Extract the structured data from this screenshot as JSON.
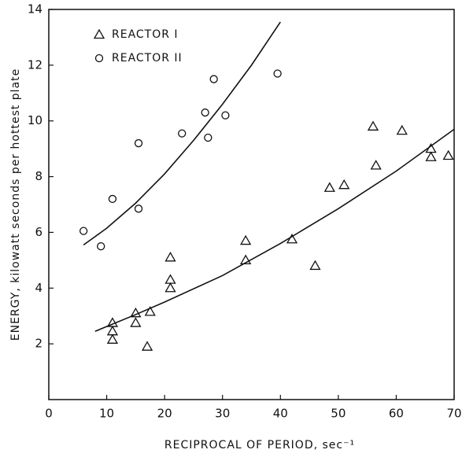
{
  "chart_data": {
    "type": "scatter",
    "x_label": "RECIPROCAL OF PERIOD, sec⁻¹",
    "y_label": "ENERGY, kilowatt seconds per hottest plate",
    "xlim": [
      0,
      70
    ],
    "ylim": [
      0,
      14
    ],
    "xticks": [
      0,
      10,
      20,
      30,
      40,
      50,
      60,
      70
    ],
    "yticks": [
      2,
      4,
      6,
      8,
      10,
      12,
      14
    ],
    "legend": "upper left",
    "color": "#111111",
    "series": [
      {
        "name": "REACTOR I",
        "marker": "triangle",
        "x": [
          11,
          11,
          11,
          15,
          15,
          17.5,
          17,
          21,
          21,
          21,
          34,
          34,
          42,
          46,
          48.5,
          51,
          56,
          56.5,
          61,
          66,
          66,
          69
        ],
        "values": [
          2.75,
          2.45,
          2.15,
          3.1,
          2.75,
          3.15,
          1.9,
          4.3,
          4.0,
          5.1,
          5.7,
          5.0,
          5.75,
          4.8,
          7.6,
          7.7,
          9.8,
          8.4,
          9.65,
          9.0,
          8.7,
          8.75
        ]
      },
      {
        "name": "REACTOR II",
        "marker": "circle",
        "x": [
          6,
          9,
          11,
          15.5,
          15.5,
          23,
          27,
          27.5,
          28.5,
          30.5,
          39.5
        ],
        "values": [
          6.05,
          5.5,
          7.2,
          6.85,
          9.2,
          9.55,
          10.3,
          9.4,
          11.5,
          10.2,
          11.7
        ]
      }
    ],
    "fits": [
      {
        "x": [
          8,
          15,
          20,
          30,
          40,
          50,
          60,
          70
        ],
        "values": [
          2.45,
          3.05,
          3.5,
          4.45,
          5.6,
          6.85,
          8.2,
          9.7
        ]
      },
      {
        "x": [
          6,
          10,
          15,
          20,
          25,
          30,
          35,
          40
        ],
        "values": [
          5.55,
          6.15,
          7.05,
          8.1,
          9.3,
          10.6,
          12.0,
          13.55
        ]
      }
    ]
  }
}
